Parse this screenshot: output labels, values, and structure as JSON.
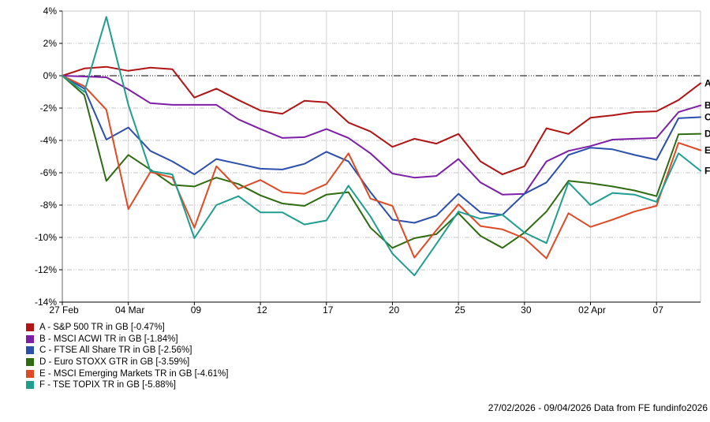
{
  "chart_data": {
    "type": "line",
    "title": "",
    "xlabel": "",
    "ylabel": "",
    "ylim": [
      -14,
      4
    ],
    "grid": true,
    "n_points": 30,
    "zero_line": true,
    "y_ticks": [
      {
        "value": 4,
        "label": "4%"
      },
      {
        "value": 2,
        "label": "2%"
      },
      {
        "value": 0,
        "label": "0%"
      },
      {
        "value": -2,
        "label": "-2%"
      },
      {
        "value": -4,
        "label": "-4%"
      },
      {
        "value": -6,
        "label": "-6%"
      },
      {
        "value": -8,
        "label": "-8%"
      },
      {
        "value": -10,
        "label": "-10%"
      },
      {
        "value": -12,
        "label": "-12%"
      },
      {
        "value": -14,
        "label": "-14%"
      }
    ],
    "x_ticks": [
      {
        "index": 0,
        "label": "27 Feb"
      },
      {
        "index": 3,
        "label": "04 Mar"
      },
      {
        "index": 6,
        "label": "09"
      },
      {
        "index": 9,
        "label": "12"
      },
      {
        "index": 12,
        "label": "17"
      },
      {
        "index": 15,
        "label": "20"
      },
      {
        "index": 18,
        "label": "25"
      },
      {
        "index": 21,
        "label": "30"
      },
      {
        "index": 24,
        "label": "02 Apr"
      },
      {
        "index": 27,
        "label": "07"
      }
    ],
    "series": [
      {
        "letter": "A",
        "name": "S&P 500 TR in GB",
        "final_return_pct": -0.47,
        "legend_label": "A - S&P 500 TR in GB [-0.47%]",
        "color": "#b01414",
        "values": [
          0,
          0.45,
          0.55,
          0.3,
          0.5,
          0.4,
          -1.35,
          -0.8,
          -1.5,
          -2.15,
          -2.35,
          -1.55,
          -1.65,
          -2.9,
          -3.45,
          -4.4,
          -3.9,
          -4.2,
          -3.6,
          -5.3,
          -6.1,
          -5.6,
          -3.25,
          -3.6,
          -2.6,
          -2.45,
          -2.25,
          -2.2,
          -1.5,
          -0.47
        ]
      },
      {
        "letter": "B",
        "name": "MSCI ACWI TR in GB",
        "final_return_pct": -1.84,
        "legend_label": "B - MSCI ACWI TR in GB [-1.84%]",
        "color": "#7d1fa6",
        "values": [
          0,
          -0.05,
          -0.1,
          -0.85,
          -1.7,
          -1.8,
          -1.8,
          -1.8,
          -2.7,
          -3.3,
          -3.85,
          -3.8,
          -3.3,
          -3.85,
          -4.8,
          -6.05,
          -6.3,
          -6.2,
          -5.15,
          -6.6,
          -7.35,
          -7.3,
          -5.3,
          -4.65,
          -4.35,
          -3.95,
          -3.9,
          -3.85,
          -2.25,
          -1.84
        ]
      },
      {
        "letter": "C",
        "name": "FTSE All Share TR in GB",
        "final_return_pct": -2.56,
        "legend_label": "C - FTSE All Share TR in GB [-2.56%]",
        "color": "#2b4fad",
        "values": [
          0,
          -0.8,
          -3.95,
          -3.2,
          -4.65,
          -5.3,
          -6.1,
          -5.15,
          -5.45,
          -5.75,
          -5.8,
          -5.45,
          -4.7,
          -5.3,
          -7.2,
          -8.9,
          -9.1,
          -8.65,
          -7.3,
          -8.45,
          -8.6,
          -7.3,
          -6.6,
          -4.9,
          -4.45,
          -4.55,
          -4.9,
          -5.2,
          -2.63,
          -2.56
        ]
      },
      {
        "letter": "D",
        "name": "Euro STOXX GTR in GB",
        "final_return_pct": -3.59,
        "legend_label": "D - Euro STOXX GTR in GB [-3.59%]",
        "color": "#2f6b11",
        "values": [
          0,
          -1.2,
          -6.5,
          -4.9,
          -5.8,
          -6.75,
          -6.85,
          -6.3,
          -6.7,
          -7.4,
          -7.9,
          -8.05,
          -7.35,
          -7.2,
          -9.4,
          -10.65,
          -10.05,
          -9.8,
          -8.5,
          -9.9,
          -10.65,
          -9.7,
          -8.4,
          -6.5,
          -6.65,
          -6.85,
          -7.1,
          -7.45,
          -3.62,
          -3.59
        ]
      },
      {
        "letter": "E",
        "name": "MSCI Emerging Markets TR in GB",
        "final_return_pct": -4.61,
        "legend_label": "E - MSCI Emerging Markets TR in GB [-4.61%]",
        "color": "#de4a26",
        "values": [
          0,
          -0.65,
          -2.1,
          -8.25,
          -5.95,
          -6.3,
          -9.4,
          -5.6,
          -7.0,
          -6.45,
          -7.2,
          -7.3,
          -6.7,
          -4.8,
          -7.6,
          -8.05,
          -11.25,
          -9.55,
          -7.95,
          -9.3,
          -9.5,
          -10.05,
          -11.3,
          -8.5,
          -9.35,
          -8.9,
          -8.4,
          -8.05,
          -4.15,
          -4.61
        ]
      },
      {
        "letter": "F",
        "name": "TSE TOPIX TR in GB",
        "final_return_pct": -5.88,
        "legend_label": "F - TSE TOPIX TR in GB [-5.88%]",
        "color": "#1f9e90",
        "values": [
          0,
          -1.0,
          3.64,
          -1.8,
          -5.9,
          -6.1,
          -10.05,
          -8.0,
          -7.45,
          -8.45,
          -8.45,
          -9.2,
          -8.95,
          -6.8,
          -8.7,
          -11.0,
          -12.35,
          -10.4,
          -8.4,
          -8.85,
          -8.6,
          -9.7,
          -10.35,
          -6.6,
          -8.0,
          -7.25,
          -7.35,
          -7.8,
          -4.8,
          -5.88
        ]
      }
    ],
    "legend_position": "bottom-left"
  },
  "footer": {
    "text": "27/02/2026 - 09/04/2026 Data from FE fundinfo2026"
  },
  "colors": {
    "plot_border": "#c9c9c9",
    "grid_minor": "#c4c4c4",
    "grid_vertical": "#d2d2d2",
    "zero_line": "#000000",
    "axis_line": "#000000"
  }
}
